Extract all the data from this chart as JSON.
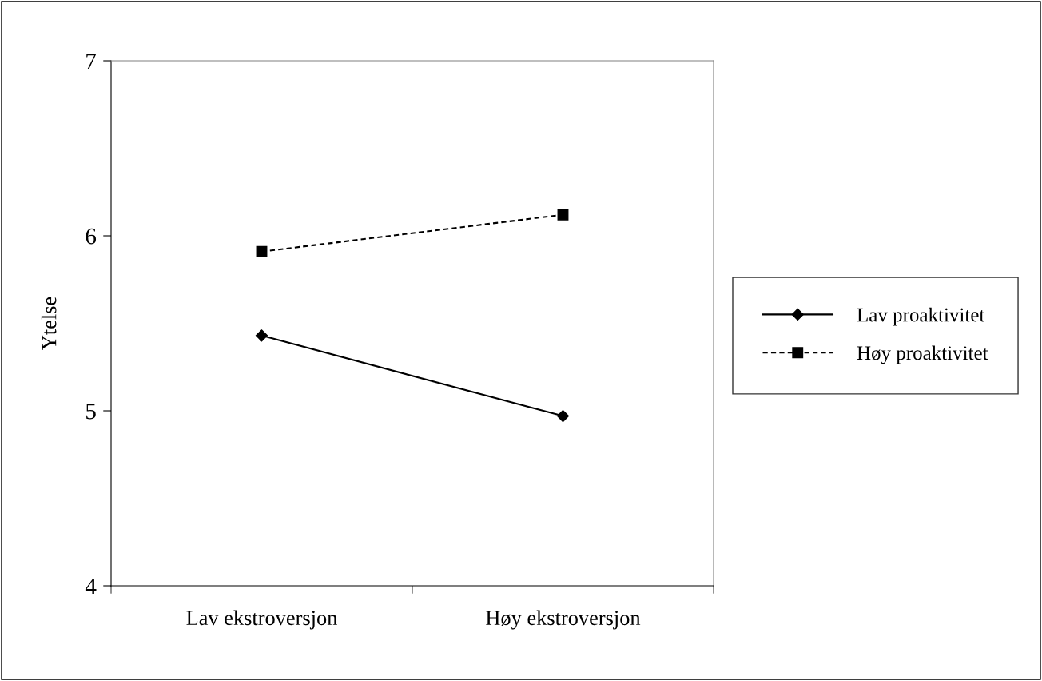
{
  "chart_data": {
    "type": "line",
    "ylabel": "Ytelse",
    "categories": [
      "Lav ekstroversjon",
      "Høy ekstroversjon"
    ],
    "series": [
      {
        "name": "Lav proaktivitet",
        "color": "#000000",
        "values": [
          5.43,
          4.97
        ],
        "marker": "diamond",
        "line_style": "solid"
      },
      {
        "name": "Høy proaktivitet",
        "color": "#000000",
        "values": [
          5.91,
          6.12
        ],
        "marker": "square",
        "line_style": "dashed"
      }
    ],
    "ylim": [
      4,
      7
    ],
    "yticks": [
      4,
      5,
      6,
      7
    ],
    "grid": false,
    "legend": "right"
  }
}
